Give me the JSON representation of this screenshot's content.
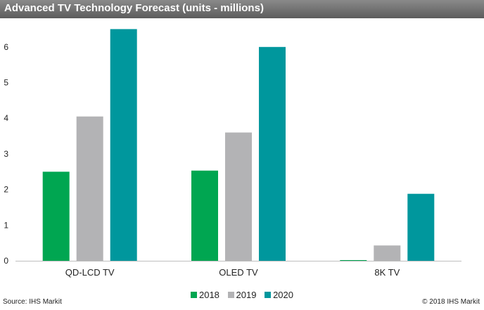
{
  "chart_data": {
    "type": "bar",
    "title": "Advanced TV Technology Forecast (units - millions)",
    "categories": [
      "QD-LCD TV",
      "OLED TV",
      "8K TV"
    ],
    "series": [
      {
        "name": "2018",
        "color": "#00A651",
        "values": [
          2.5,
          2.53,
          0.0
        ]
      },
      {
        "name": "2019",
        "color": "#B3B3B5",
        "values": [
          4.05,
          3.6,
          0.43
        ]
      },
      {
        "name": "2020",
        "color": "#00979D",
        "values": [
          6.5,
          6.0,
          1.88
        ]
      }
    ],
    "ylim": [
      0,
      6.5
    ],
    "yticks": [
      "0",
      "1",
      "2",
      "3",
      "4",
      "5",
      "6"
    ],
    "xlabel": "",
    "ylabel": "",
    "legend_position": "bottom-center",
    "grid": false
  },
  "footer": {
    "source": "Source: IHS Markit",
    "copyright": "© 2018 IHS Markit"
  }
}
